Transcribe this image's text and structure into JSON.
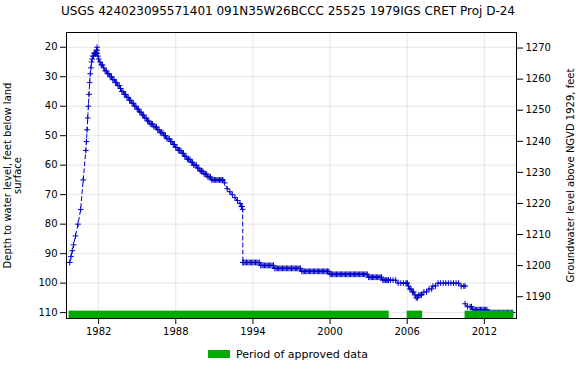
{
  "chart_data": {
    "type": "line",
    "title": "USGS 424023095571401 091N35W26BCCC 25525 1979IGS CRET Proj D-24",
    "ylabel": "Depth to water level, feet below land\nsurface",
    "y2label": "Groundwater level above NGVD 1929, feet",
    "xlim": [
      1979.5,
      2014.5
    ],
    "ylim": [
      112,
      15
    ],
    "y2lim": [
      1183,
      1275
    ],
    "xticks": [
      1982,
      1988,
      1994,
      2000,
      2006,
      2012
    ],
    "yticks": [
      20,
      30,
      40,
      50,
      60,
      70,
      80,
      90,
      100,
      110
    ],
    "y2ticks": [
      1190,
      1200,
      1210,
      1220,
      1230,
      1240,
      1250,
      1260,
      1270
    ],
    "grid": true,
    "legend": "bottom",
    "approved": {
      "label": "Period of approved data",
      "color": "#00aa00",
      "periods": [
        [
          1979.7,
          2004.6
        ],
        [
          2006.0,
          2007.2
        ],
        [
          2010.5,
          2014.3
        ]
      ],
      "y": [
        109.5,
        112
      ]
    },
    "series": [
      {
        "color": "#0000cc",
        "marker": "plus",
        "line_style": "dashed",
        "x": [
          1979.75,
          1979.85,
          1979.95,
          1980.05,
          1980.2,
          1980.4,
          1980.6,
          1980.8,
          1981.0,
          1981.05,
          1981.1,
          1981.15,
          1981.2,
          1981.25,
          1981.3,
          1981.35,
          1981.4,
          1981.45,
          1981.5,
          1981.55,
          1981.6,
          1981.65,
          1981.7,
          1981.75,
          1981.8,
          1981.82,
          1981.84,
          1981.86,
          1981.88
        ],
        "values": [
          93,
          91,
          89,
          87,
          84,
          80,
          75,
          65,
          55,
          52,
          48,
          44,
          40,
          36,
          32,
          29,
          27,
          25,
          24,
          23,
          23,
          22,
          22,
          22,
          22,
          22,
          21,
          21,
          20
        ]
      },
      {
        "color": "#0000cc",
        "marker": "plus",
        "line_style": "solid",
        "x": [
          1981.88,
          1981.95,
          1982.0,
          1982.1,
          1982.2,
          1982.3,
          1982.4,
          1982.5,
          1982.6,
          1982.7,
          1982.8,
          1982.9,
          1983.0,
          1983.1,
          1983.2,
          1983.3,
          1983.4,
          1983.5,
          1983.6,
          1983.7,
          1983.8,
          1983.9,
          1984.0,
          1984.1,
          1984.2,
          1984.3,
          1984.4,
          1984.5,
          1984.6,
          1984.7,
          1984.8,
          1984.9,
          1985.0,
          1985.1,
          1985.2,
          1985.3,
          1985.4,
          1985.5,
          1985.6,
          1985.7,
          1985.8,
          1985.9,
          1986.0,
          1986.1,
          1986.2,
          1986.3,
          1986.4,
          1986.5,
          1986.6,
          1986.7,
          1986.8,
          1986.9,
          1987.0,
          1987.1,
          1987.2,
          1987.3,
          1987.4,
          1987.5,
          1987.6,
          1987.7,
          1987.8,
          1987.9,
          1988.0,
          1988.1,
          1988.2,
          1988.3,
          1988.4,
          1988.5,
          1988.6,
          1988.7,
          1988.8,
          1988.9,
          1989.0,
          1989.1,
          1989.2,
          1989.3,
          1989.4,
          1989.5,
          1989.6,
          1989.7,
          1989.8,
          1989.9,
          1990.0,
          1990.1,
          1990.2,
          1990.3,
          1990.4,
          1990.5,
          1990.6,
          1990.7,
          1990.8,
          1990.9,
          1991.0,
          1991.1,
          1991.2,
          1991.3,
          1991.4,
          1991.5,
          1991.6,
          1991.65
        ],
        "values": [
          22,
          23,
          24,
          25,
          26,
          26,
          27,
          28,
          28,
          29,
          29,
          30,
          30,
          31,
          31,
          32,
          32,
          33,
          33,
          34,
          35,
          35,
          36,
          36,
          37,
          37,
          38,
          38,
          39,
          39,
          40,
          40,
          41,
          41,
          42,
          42,
          43,
          43,
          44,
          44,
          45,
          45,
          46,
          46,
          46,
          47,
          47,
          47,
          48,
          48,
          49,
          49,
          49,
          50,
          50,
          51,
          51,
          51,
          52,
          52,
          53,
          53,
          54,
          54,
          55,
          55,
          55,
          56,
          56,
          57,
          57,
          58,
          58,
          58,
          59,
          59,
          60,
          60,
          60,
          61,
          61,
          62,
          62,
          62,
          63,
          63,
          63,
          64,
          64,
          64,
          65,
          65,
          65,
          65,
          65,
          65,
          65,
          65,
          65,
          65
        ]
      },
      {
        "color": "#0000cc",
        "marker": "plus",
        "line_style": "dashed",
        "x": [
          1991.65,
          1991.8,
          1992.0,
          1992.2,
          1992.4,
          1992.6,
          1992.8,
          1993.0,
          1993.1,
          1993.15,
          1993.2,
          1993.22
        ],
        "values": [
          65,
          66,
          68,
          69,
          70,
          71,
          72,
          73,
          74,
          74,
          75,
          93
        ]
      },
      {
        "color": "#0000cc",
        "marker": "plus",
        "line_style": "solid",
        "x": [
          1993.22,
          1993.3,
          1993.4,
          1993.5,
          1993.6,
          1993.7,
          1993.8,
          1993.9,
          1994.0,
          1994.1,
          1994.2,
          1994.3,
          1994.4,
          1994.5,
          1994.6,
          1994.7,
          1994.8,
          1994.9,
          1995.0,
          1995.1,
          1995.2,
          1995.3,
          1995.4,
          1995.5,
          1995.6,
          1995.7,
          1995.8,
          1995.9,
          1996.0,
          1996.1,
          1996.2,
          1996.3,
          1996.4,
          1996.5,
          1996.6,
          1996.7,
          1996.8,
          1996.9,
          1997.0,
          1997.1,
          1997.2,
          1997.3,
          1997.4,
          1997.5,
          1997.6,
          1997.7,
          1997.8,
          1997.9,
          1998.0,
          1998.1,
          1998.2,
          1998.3,
          1998.4,
          1998.5,
          1998.6,
          1998.7,
          1998.8,
          1998.9,
          1999.0,
          1999.1,
          1999.2,
          1999.3,
          1999.4,
          1999.5,
          1999.6,
          1999.7,
          1999.8,
          1999.9,
          2000.0,
          2000.1,
          2000.2,
          2000.3,
          2000.4,
          2000.5,
          2000.6,
          2000.7,
          2000.8,
          2000.9,
          2001.0,
          2001.1,
          2001.2,
          2001.3,
          2001.4,
          2001.5,
          2001.6,
          2001.7,
          2001.8,
          2001.9,
          2002.0,
          2002.1,
          2002.2,
          2002.3,
          2002.4,
          2002.5,
          2002.6,
          2002.7,
          2002.8,
          2002.9,
          2003.0,
          2003.1,
          2003.2,
          2003.3,
          2003.4,
          2003.5,
          2003.6,
          2003.7,
          2003.8,
          2003.9,
          2004.0,
          2004.1,
          2004.2,
          2004.3,
          2004.4,
          2004.5,
          2004.55
        ],
        "values": [
          93,
          93,
          93,
          93,
          93,
          93,
          93,
          93,
          93,
          93,
          93,
          93,
          93,
          93,
          94,
          94,
          94,
          94,
          94,
          94,
          94,
          94,
          94,
          94,
          94,
          95,
          95,
          95,
          95,
          95,
          95,
          95,
          95,
          95,
          95,
          95,
          95,
          95,
          95,
          95,
          95,
          95,
          95,
          95,
          95,
          95,
          96,
          96,
          96,
          96,
          96,
          96,
          96,
          96,
          96,
          96,
          96,
          96,
          96,
          96,
          96,
          96,
          96,
          96,
          96,
          96,
          96,
          96,
          97,
          97,
          97,
          97,
          97,
          97,
          97,
          97,
          97,
          97,
          97,
          97,
          97,
          97,
          97,
          97,
          97,
          97,
          97,
          97,
          97,
          97,
          97,
          97,
          97,
          97,
          97,
          97,
          97,
          97,
          98,
          98,
          98,
          98,
          98,
          98,
          98,
          98,
          98,
          98,
          98,
          99,
          99,
          99,
          99,
          99,
          99
        ]
      },
      {
        "color": "#0000cc",
        "marker": "plus",
        "line_style": "dashed",
        "x": [
          2004.55,
          2004.7,
          2004.9,
          2005.1,
          2005.3,
          2005.5,
          2005.7,
          2005.9,
          2006.0
        ],
        "values": [
          99,
          99,
          99,
          99,
          100,
          100,
          100,
          100,
          100
        ]
      },
      {
        "color": "#0000cc",
        "marker": "plus",
        "line_style": "solid",
        "x": [
          2006.0,
          2006.1,
          2006.2,
          2006.3,
          2006.4,
          2006.5,
          2006.6,
          2006.7,
          2006.8,
          2006.9,
          2007.0,
          2007.1
        ],
        "values": [
          100,
          101,
          102,
          102,
          103,
          103,
          104,
          105,
          105,
          104,
          104,
          104
        ]
      },
      {
        "color": "#0000cc",
        "marker": "plus",
        "line_style": "dashed",
        "x": [
          2007.1,
          2007.3,
          2007.5,
          2007.7,
          2007.9,
          2008.0,
          2008.2,
          2008.4,
          2008.6,
          2008.8,
          2009.0,
          2009.2,
          2009.4,
          2009.6,
          2009.8,
          2010.0,
          2010.2,
          2010.4,
          2010.5
        ],
        "values": [
          104,
          103,
          103,
          102,
          102,
          101,
          101,
          100,
          100,
          100,
          100,
          100,
          100,
          100,
          100,
          100,
          101,
          101,
          101
        ]
      },
      {
        "color": "#0000cc",
        "marker": "plus",
        "line_style": "solid",
        "x": [
          2010.5,
          2010.7,
          2010.9,
          2011.0,
          2011.1,
          2011.2,
          2011.3,
          2011.4,
          2011.5,
          2011.6,
          2011.7,
          2011.8,
          2011.9,
          2012.0,
          2012.1,
          2012.2,
          2012.3,
          2012.4,
          2012.5,
          2012.6,
          2012.7,
          2012.8,
          2012.9,
          2013.0,
          2013.1,
          2013.2,
          2013.3,
          2013.4,
          2013.5,
          2013.6,
          2013.7,
          2013.8,
          2013.9,
          2014.0,
          2014.1,
          2014.2
        ],
        "values": [
          107,
          108,
          108,
          108,
          109,
          109,
          109,
          109,
          109,
          109,
          109,
          109,
          109,
          109,
          109,
          109,
          110,
          110,
          110,
          110,
          110,
          110,
          110,
          110,
          110,
          110,
          110,
          110,
          110,
          110,
          110,
          110,
          110,
          110,
          110,
          110
        ]
      }
    ]
  }
}
